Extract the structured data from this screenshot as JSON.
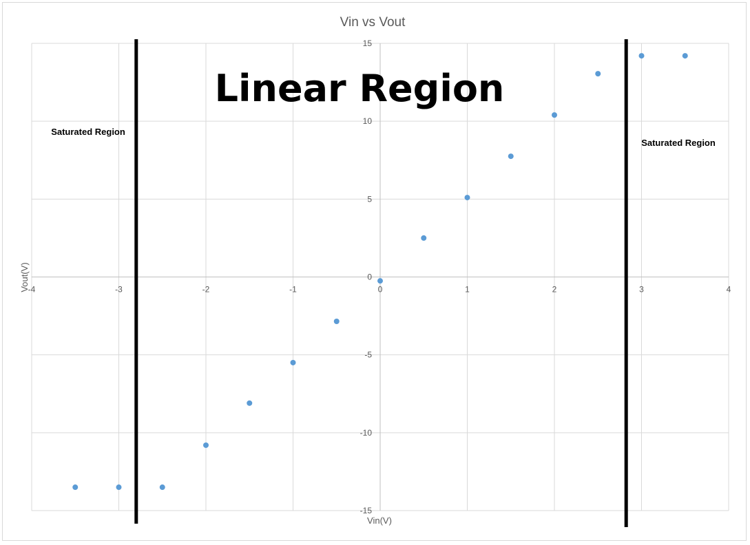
{
  "chart_data": {
    "type": "scatter",
    "title": "Vin vs Vout",
    "xlabel": "Vin(V)",
    "ylabel": "Vout(V)",
    "xlim": [
      -4,
      4
    ],
    "ylim": [
      -15,
      15
    ],
    "xticks": [
      -4,
      -3,
      -2,
      -1,
      0,
      1,
      2,
      3,
      4
    ],
    "yticks": [
      -15,
      -10,
      -5,
      0,
      5,
      10,
      15
    ],
    "grid": true,
    "legend": "none",
    "marker_color": "#5b9bd5",
    "series": [
      {
        "x": [
          -3.5,
          -3,
          -2.5,
          -2,
          -1.5,
          -1,
          -0.5,
          0,
          0.5,
          1,
          1.5,
          2,
          2.5,
          3,
          3.5
        ],
        "y": [
          -13.5,
          -13.5,
          -13.5,
          -10.8,
          -8.1,
          -5.5,
          -2.85,
          -0.25,
          2.5,
          5.1,
          7.75,
          10.4,
          13.05,
          14.2,
          14.2
        ]
      }
    ],
    "region_boundaries_x": [
      -2.8,
      2.8
    ],
    "annotations": {
      "center": "Linear Region",
      "left": "Saturated Region",
      "right": "Saturated Region"
    }
  }
}
